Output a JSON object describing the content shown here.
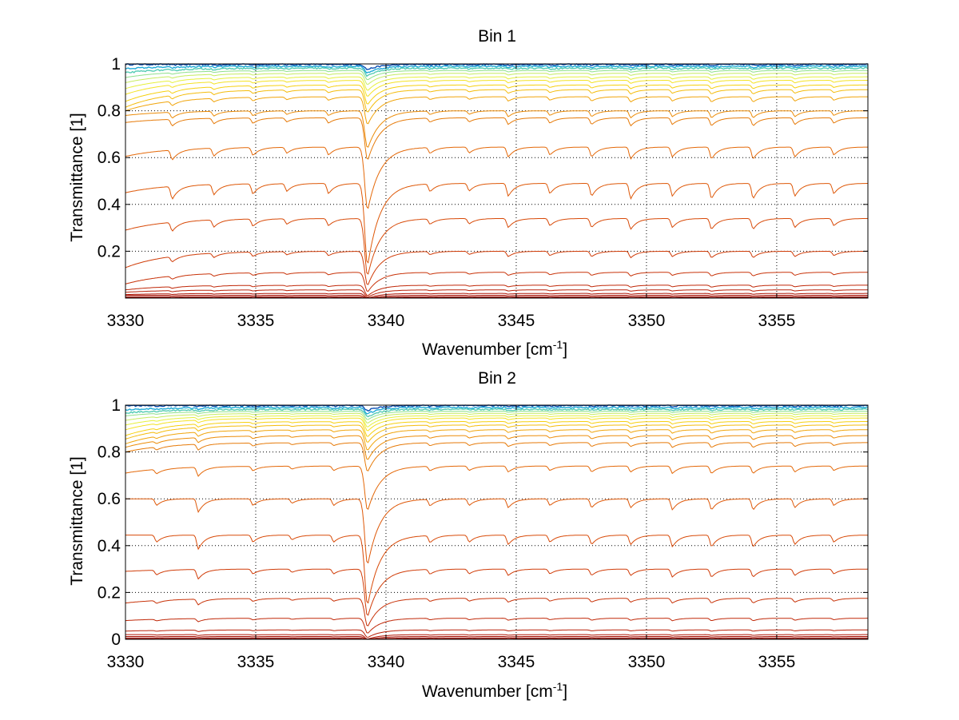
{
  "chart_data": [
    {
      "type": "line",
      "title": "Bin 1",
      "xlabel": "Wavenumber [cm",
      "xlabel_sup": "-1",
      "xlabel_end": "]",
      "ylabel": "Transmittance [1]",
      "xlim": [
        3330,
        3358.5
      ],
      "ylim": [
        0,
        1
      ],
      "xticks": [
        3330,
        3335,
        3340,
        3345,
        3350,
        3355
      ],
      "yticks": [
        0.2,
        0.4,
        0.6,
        0.8,
        1
      ],
      "ytick_labels": [
        "0.2",
        "0.4",
        "0.6",
        "0.8",
        "1"
      ],
      "grid": true,
      "series_baselines": [
        0.998,
        0.99,
        0.982,
        0.972,
        0.96,
        0.945,
        0.93,
        0.91,
        0.89,
        0.86,
        0.8,
        0.77,
        0.645,
        0.49,
        0.34,
        0.2,
        0.11,
        0.055,
        0.035,
        0.02,
        0.012,
        0.006,
        0.002
      ],
      "series_start_dips": [
        0.0,
        0.01,
        0.02,
        0.03,
        0.04,
        0.05,
        0.06,
        0.07,
        0.075,
        0.06,
        0.02,
        0.02,
        0.04,
        0.04,
        0.05,
        0.07,
        0.05,
        0.02,
        0.01,
        0.005,
        0,
        0,
        0
      ],
      "series_colors": [
        "#0a4fb4",
        "#1faad8",
        "#55ccb4",
        "#8ee08a",
        "#c6ec60",
        "#e6f03c",
        "#f4e224",
        "#f6d010",
        "#f4bc0c",
        "#f0a40a",
        "#ec8c08",
        "#e67a08",
        "#e46808",
        "#de5808",
        "#d84a08",
        "#d03c08",
        "#c83208",
        "#c02808",
        "#b82008",
        "#b01808",
        "#a81408",
        "#a01008",
        "#980c08"
      ],
      "absorption_lines": [
        {
          "x": 3339.3,
          "depth": 0.32
        },
        {
          "x": 3331.8,
          "depth": 0.05
        },
        {
          "x": 3333.4,
          "depth": 0.04
        },
        {
          "x": 3334.9,
          "depth": 0.04
        },
        {
          "x": 3336.2,
          "depth": 0.03
        },
        {
          "x": 3337.8,
          "depth": 0.04
        },
        {
          "x": 3341.7,
          "depth": 0.03
        },
        {
          "x": 3343.2,
          "depth": 0.03
        },
        {
          "x": 3344.7,
          "depth": 0.05
        },
        {
          "x": 3346.3,
          "depth": 0.04
        },
        {
          "x": 3347.9,
          "depth": 0.05
        },
        {
          "x": 3349.4,
          "depth": 0.06
        },
        {
          "x": 3351.0,
          "depth": 0.05
        },
        {
          "x": 3352.5,
          "depth": 0.06
        },
        {
          "x": 3354.1,
          "depth": 0.06
        },
        {
          "x": 3355.7,
          "depth": 0.05
        },
        {
          "x": 3357.2,
          "depth": 0.04
        }
      ]
    },
    {
      "type": "line",
      "title": "Bin 2",
      "xlabel": "Wavenumber [cm",
      "xlabel_sup": "-1",
      "xlabel_end": "]",
      "ylabel": "Transmittance [1]",
      "xlim": [
        3330,
        3358.5
      ],
      "ylim": [
        0,
        1
      ],
      "xticks": [
        3330,
        3335,
        3340,
        3345,
        3350,
        3355
      ],
      "yticks": [
        0,
        0.2,
        0.4,
        0.6,
        0.8,
        1
      ],
      "ytick_labels": [
        "0",
        "0.2",
        "0.4",
        "0.6",
        "0.8",
        "1"
      ],
      "grid": true,
      "series_baselines": [
        0.998,
        0.99,
        0.982,
        0.974,
        0.965,
        0.955,
        0.945,
        0.93,
        0.915,
        0.895,
        0.87,
        0.84,
        0.74,
        0.6,
        0.445,
        0.3,
        0.175,
        0.09,
        0.04,
        0.02,
        0.012,
        0.006,
        0.002
      ],
      "series_start_dips": [
        0.0,
        0.01,
        0.015,
        0.02,
        0.03,
        0.04,
        0.05,
        0.06,
        0.06,
        0.06,
        0.05,
        0.04,
        0.03,
        0.0,
        0.0,
        0.01,
        0.02,
        0.01,
        0.005,
        0,
        0,
        0,
        0
      ],
      "series_colors": [
        "#0a4fb4",
        "#1faad8",
        "#55ccb4",
        "#8ee08a",
        "#c6ec60",
        "#e6f03c",
        "#f4e224",
        "#f6d010",
        "#f4bc0c",
        "#f0a40a",
        "#ec8c08",
        "#e67a08",
        "#e46808",
        "#de5808",
        "#d84a08",
        "#d03c08",
        "#c83208",
        "#c02808",
        "#b82008",
        "#b01808",
        "#a81408",
        "#a01008",
        "#980c08"
      ],
      "absorption_lines": [
        {
          "x": 3339.3,
          "depth": 0.3
        },
        {
          "x": 3332.8,
          "depth": 0.06
        },
        {
          "x": 3331.2,
          "depth": 0.03
        },
        {
          "x": 3334.9,
          "depth": 0.03
        },
        {
          "x": 3336.4,
          "depth": 0.02
        },
        {
          "x": 3338.0,
          "depth": 0.03
        },
        {
          "x": 3341.7,
          "depth": 0.03
        },
        {
          "x": 3343.2,
          "depth": 0.03
        },
        {
          "x": 3344.7,
          "depth": 0.04
        },
        {
          "x": 3346.3,
          "depth": 0.03
        },
        {
          "x": 3347.9,
          "depth": 0.04
        },
        {
          "x": 3349.4,
          "depth": 0.04
        },
        {
          "x": 3351.0,
          "depth": 0.05
        },
        {
          "x": 3352.5,
          "depth": 0.05
        },
        {
          "x": 3354.1,
          "depth": 0.05
        },
        {
          "x": 3355.7,
          "depth": 0.04
        },
        {
          "x": 3357.2,
          "depth": 0.03
        }
      ]
    }
  ]
}
